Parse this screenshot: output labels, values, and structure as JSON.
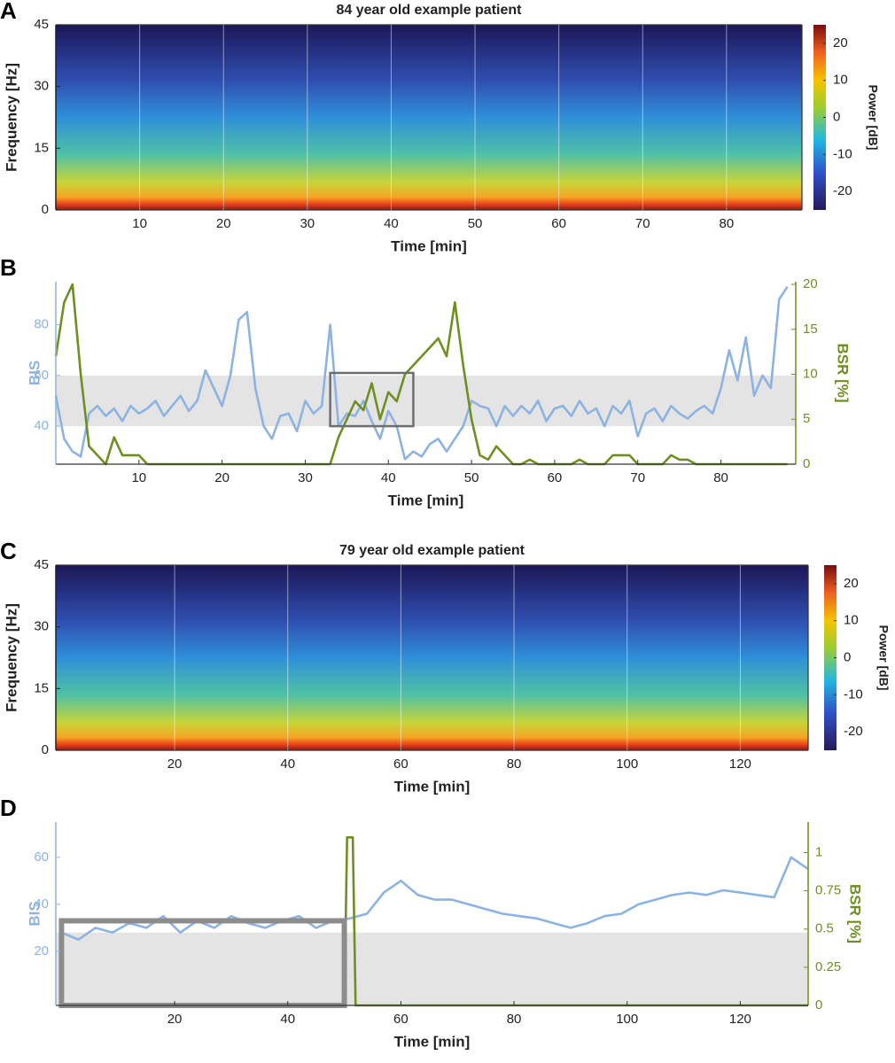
{
  "chart_data": [
    {
      "type": "spectrogram",
      "panel": "A",
      "title": "84 year old example patient",
      "xlabel": "Time [min]",
      "ylabel": "Frequency [Hz]",
      "xlim": [
        0,
        89
      ],
      "xticks": [
        10,
        20,
        30,
        40,
        50,
        60,
        70,
        80
      ],
      "ylim": [
        0,
        45
      ],
      "yticks": [
        0,
        15,
        30,
        45
      ],
      "colorbar": {
        "label": "Power [dB]",
        "lim": [
          -25,
          25
        ],
        "ticks": [
          -20,
          -10,
          0,
          10,
          20
        ]
      }
    },
    {
      "type": "line",
      "panel": "B",
      "xlabel": "Time [min]",
      "ylabel": "BIS",
      "y2label": "BSR [%]",
      "xlim": [
        0,
        89
      ],
      "xticks": [
        10,
        20,
        30,
        40,
        50,
        60,
        70,
        80
      ],
      "ylim": [
        25,
        97
      ],
      "yticks": [
        40,
        60,
        80
      ],
      "y2lim": [
        0,
        20.3
      ],
      "y2ticks": [
        0,
        5,
        10,
        15,
        20
      ],
      "band": [
        40,
        60
      ],
      "box": {
        "x": [
          33,
          43
        ],
        "y": [
          40,
          61
        ],
        "color": "#6d6d6d"
      },
      "x": [
        0,
        1,
        2,
        3,
        4,
        5,
        6,
        7,
        8,
        9,
        10,
        11,
        12,
        13,
        14,
        15,
        16,
        17,
        18,
        19,
        20,
        21,
        22,
        23,
        24,
        25,
        26,
        27,
        28,
        29,
        30,
        31,
        32,
        33,
        34,
        35,
        36,
        37,
        38,
        39,
        40,
        41,
        42,
        43,
        44,
        45,
        46,
        47,
        48,
        49,
        50,
        51,
        52,
        53,
        54,
        55,
        56,
        57,
        58,
        59,
        60,
        61,
        62,
        63,
        64,
        65,
        66,
        67,
        68,
        69,
        70,
        71,
        72,
        73,
        74,
        75,
        76,
        77,
        78,
        79,
        80,
        81,
        82,
        83,
        84,
        85,
        86,
        87,
        88
      ],
      "series": [
        {
          "name": "BIS",
          "color": "#8db3e2",
          "values": [
            52,
            35,
            30,
            28,
            45,
            48,
            44,
            47,
            42,
            48,
            45,
            47,
            50,
            44,
            48,
            52,
            46,
            50,
            62,
            55,
            48,
            60,
            82,
            85,
            55,
            40,
            35,
            44,
            45,
            38,
            50,
            45,
            48,
            80,
            40,
            45,
            44,
            50,
            42,
            35,
            46,
            40,
            27,
            30,
            28,
            33,
            35,
            30,
            35,
            40,
            50,
            48,
            47,
            40,
            48,
            44,
            48,
            45,
            50,
            42,
            47,
            48,
            44,
            50,
            45,
            47,
            40,
            48,
            45,
            50,
            36,
            45,
            47,
            42,
            48,
            45,
            43,
            46,
            48,
            45,
            55,
            70,
            58,
            75,
            52,
            60,
            55,
            90,
            95
          ]
        },
        {
          "name": "BSR",
          "color": "#6f8f22",
          "axis": "y2",
          "values": [
            12,
            18,
            20,
            10,
            2,
            1,
            0,
            3,
            1,
            1,
            1,
            0,
            0,
            0,
            0,
            0,
            0,
            0,
            0,
            0,
            0,
            0,
            0,
            0,
            0,
            0,
            0,
            0,
            0,
            0,
            0,
            0,
            0,
            0,
            3,
            5,
            7,
            6,
            9,
            5,
            8,
            7,
            10,
            11,
            12,
            13,
            14,
            12,
            18,
            11,
            5,
            1,
            0.5,
            2,
            1,
            0,
            0,
            0.5,
            0,
            0,
            0,
            0,
            0,
            0.5,
            0,
            0,
            0,
            1,
            1,
            1,
            0,
            0,
            0,
            0,
            1,
            0.5,
            0.5,
            0,
            0,
            0,
            0,
            0,
            0,
            0,
            0,
            0,
            0,
            0,
            0
          ]
        }
      ]
    },
    {
      "type": "spectrogram",
      "panel": "C",
      "title": "79 year old example patient",
      "xlabel": "Time [min]",
      "ylabel": "Frequency [Hz]",
      "xlim": [
        -1,
        132
      ],
      "xticks": [
        20,
        40,
        60,
        80,
        100,
        120
      ],
      "ylim": [
        0,
        45
      ],
      "yticks": [
        0,
        15,
        30,
        45
      ],
      "colorbar": {
        "label": "Power [dB]",
        "lim": [
          -25,
          25
        ],
        "ticks": [
          -20,
          -10,
          0,
          10,
          20
        ]
      }
    },
    {
      "type": "line",
      "panel": "D",
      "xlabel": "Time [min]",
      "ylabel": "BIS",
      "y2label": "BSR [%]",
      "xlim": [
        -1,
        132
      ],
      "xticks": [
        20,
        40,
        60,
        80,
        100,
        120
      ],
      "ylim": [
        -3,
        75
      ],
      "yticks": [
        20,
        40,
        60
      ],
      "y2lim": [
        0,
        1.2
      ],
      "y2ticks": [
        0,
        0.25,
        0.5,
        0.75,
        1
      ],
      "band": [
        -3,
        28
      ],
      "box": {
        "x": [
          0,
          50
        ],
        "y": [
          -3,
          33
        ],
        "color": "#8c8c8c"
      },
      "x": [
        0,
        3,
        6,
        9,
        12,
        15,
        18,
        21,
        24,
        27,
        30,
        33,
        36,
        39,
        42,
        45,
        48,
        51,
        54,
        57,
        60,
        63,
        66,
        69,
        72,
        75,
        78,
        81,
        84,
        87,
        90,
        93,
        96,
        99,
        102,
        105,
        108,
        111,
        114,
        117,
        120,
        123,
        126,
        129,
        132
      ],
      "series": [
        {
          "name": "BIS",
          "color": "#8db3e2",
          "values": [
            28,
            25,
            30,
            28,
            32,
            30,
            35,
            28,
            33,
            30,
            35,
            32,
            30,
            33,
            35,
            30,
            33,
            34,
            36,
            45,
            50,
            44,
            42,
            42,
            40,
            38,
            36,
            35,
            34,
            32,
            30,
            32,
            35,
            36,
            40,
            42,
            44,
            45,
            44,
            46,
            45,
            44,
            43,
            60,
            55
          ]
        },
        {
          "name": "BSR",
          "color": "#6f8f22",
          "axis": "y2",
          "x": [
            0,
            50,
            50.5,
            51.5,
            52,
            132
          ],
          "values": [
            0,
            0,
            1.1,
            1.1,
            0,
            0
          ]
        }
      ]
    }
  ]
}
